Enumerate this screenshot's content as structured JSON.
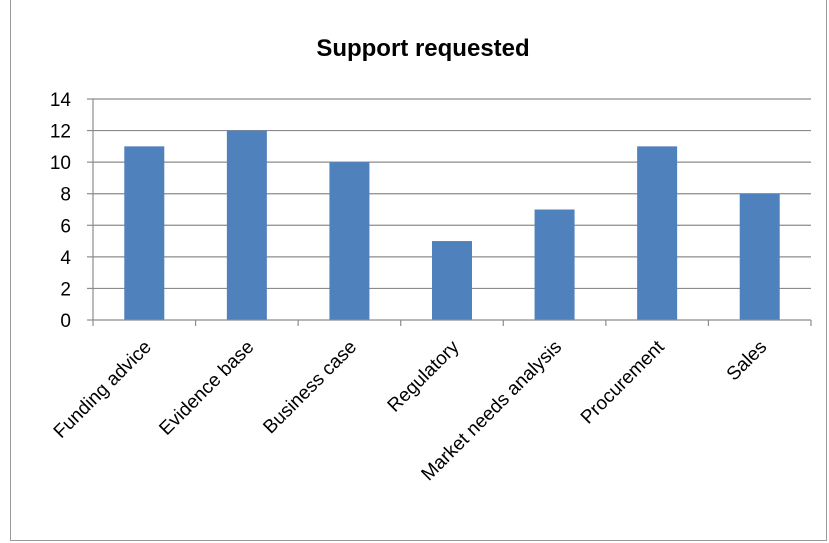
{
  "chart_data": {
    "type": "bar",
    "title": "Support requested",
    "xlabel": "",
    "ylabel": "",
    "categories": [
      "Funding advice",
      "Evidence base",
      "Business case",
      "Regulatory",
      "Market needs analysis",
      "Procurement",
      "Sales"
    ],
    "values": [
      11,
      12,
      10,
      5,
      7,
      11,
      8
    ],
    "ylim": [
      0,
      14
    ],
    "yticks": [
      0,
      2,
      4,
      6,
      8,
      10,
      12,
      14
    ],
    "grid": true,
    "legend": "none",
    "colors": {
      "bar": "#4f81bd",
      "grid": "#8c8c8c",
      "axis": "#8c8c8c"
    }
  }
}
